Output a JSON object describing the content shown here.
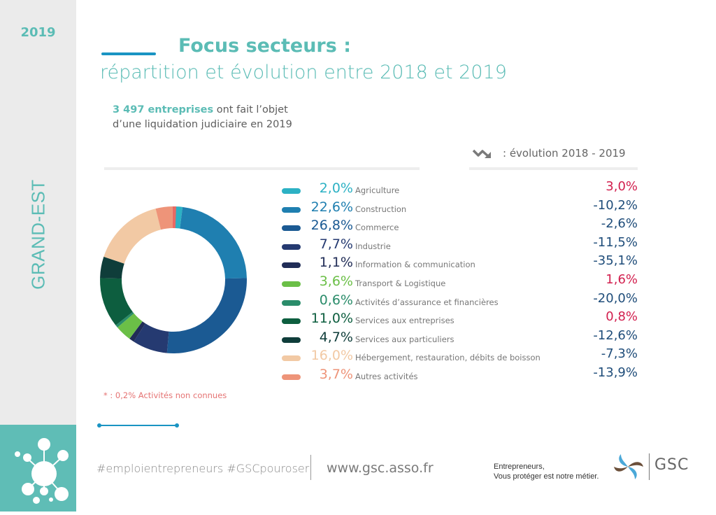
{
  "sidebar": {
    "year": "2019",
    "region": "GRAND-EST"
  },
  "header": {
    "title": "Focus secteurs :",
    "subtitle": "répartition et évolution entre 2018 et 2019",
    "intro_highlight": "3 497 entreprises",
    "intro_rest_line1": " ont fait l’objet",
    "intro_line2": "d’une liquidation judiciaire en 2019",
    "evolution_heading": ": évolution 2018 - 2019",
    "evolution_icon": "trend-down-icon"
  },
  "chart_data": {
    "type": "pie",
    "variant": "donut",
    "title": "Focus secteurs : répartition et évolution entre 2018 et 2019",
    "start": "top",
    "direction": "clockwise",
    "slices": [
      {
        "label": "Agriculture",
        "value": 2.0,
        "pct_text": "2,0%",
        "evolution": "3,0%",
        "evolution_sign": "positive",
        "color": "#2cb1c4"
      },
      {
        "label": "Construction",
        "value": 22.6,
        "pct_text": "22,6%",
        "evolution": "-10,2%",
        "evolution_sign": "negative",
        "color": "#1f7fb0"
      },
      {
        "label": "Commerce",
        "value": 26.8,
        "pct_text": "26,8%",
        "evolution": "-2,6%",
        "evolution_sign": "negative",
        "color": "#1b5a93"
      },
      {
        "label": "Industrie",
        "value": 7.7,
        "pct_text": "7,7%",
        "evolution": "-11,5%",
        "evolution_sign": "negative",
        "color": "#253a71"
      },
      {
        "label": "Information & communication",
        "value": 1.1,
        "pct_text": "1,1%",
        "evolution": "-35,1%",
        "evolution_sign": "negative",
        "color": "#212d57"
      },
      {
        "label": "Transport & Logistique",
        "value": 3.6,
        "pct_text": "3,6%",
        "evolution": "1,6%",
        "evolution_sign": "positive",
        "color": "#6bbf47"
      },
      {
        "label": "Activités d’assurance et financières",
        "value": 0.6,
        "pct_text": "0,6%",
        "evolution": "-20,0%",
        "evolution_sign": "negative",
        "color": "#2a8c6a"
      },
      {
        "label": "Services aux entreprises",
        "value": 11.0,
        "pct_text": "11,0%",
        "evolution": "0,8%",
        "evolution_sign": "positive",
        "color": "#0d5e3f"
      },
      {
        "label": "Services aux particuliers",
        "value": 4.7,
        "pct_text": "4,7%",
        "evolution": "-12,6%",
        "evolution_sign": "negative",
        "color": "#0f3d3a"
      },
      {
        "label": "Hébergement, restauration, débits de boisson",
        "value": 16.0,
        "pct_text": "16,0%",
        "evolution": "-7,3%",
        "evolution_sign": "negative",
        "color": "#f2c9a4"
      },
      {
        "label": "Autres activités",
        "value": 3.7,
        "pct_text": "3,7%",
        "evolution": "-13,9%",
        "evolution_sign": "negative",
        "color": "#ee9479"
      }
    ],
    "unknown_slice": {
      "label": "Activités non connues",
      "value": 0.2,
      "color": "#e86a63"
    },
    "note": "* : 0,2% Activités non connues"
  },
  "colors": {
    "accent": "#5bbcb5",
    "line": "#1a94c3",
    "positive": "#d2204f",
    "negative": "#1f4d7a"
  },
  "footer": {
    "hashtags": "#emploientrepreneurs #GSCpouroser",
    "website": "www.gsc.asso.fr",
    "tagline_line1": "Entrepreneurs,",
    "tagline_line2": "Vous protéger est notre métier.",
    "brand": "GSC"
  }
}
